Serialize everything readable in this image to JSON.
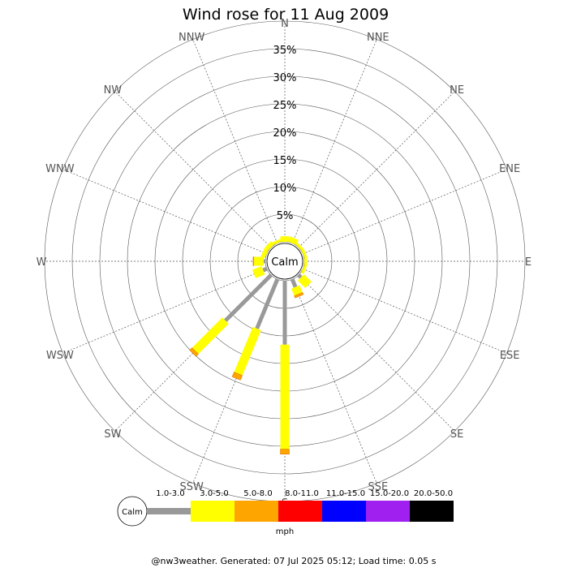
{
  "chart_data": {
    "type": "wind-rose",
    "title": "Wind rose for 11 Aug 2009",
    "directions": [
      "N",
      "NNE",
      "NE",
      "ENE",
      "E",
      "ESE",
      "SE",
      "SSE",
      "S",
      "SSW",
      "SW",
      "WSW",
      "W",
      "WNW",
      "NW",
      "NNW"
    ],
    "radial_ticks": [
      "5%",
      "10%",
      "15%",
      "20%",
      "25%",
      "30%",
      "35%"
    ],
    "radial_max": 35,
    "calm_label": "Calm",
    "speed_bins": [
      {
        "label": "1.0-3.0",
        "color": "#999999"
      },
      {
        "label": "3.0-5.0",
        "color": "#ffff00"
      },
      {
        "label": "5.0-8.0",
        "color": "#ffa500"
      },
      {
        "label": "8.0-11.0",
        "color": "#ff0000"
      },
      {
        "label": "11.0-15.0",
        "color": "#0000ff"
      },
      {
        "label": "15.0-20.0",
        "color": "#a020f0"
      },
      {
        "label": "20.0-50.0",
        "color": "#000000"
      }
    ],
    "unit": "mph",
    "series": [
      {
        "direction": "N",
        "values": [
          0,
          1.0,
          0
        ]
      },
      {
        "direction": "NNE",
        "values": [
          0,
          1.0,
          0
        ]
      },
      {
        "direction": "NE",
        "values": [
          0,
          0.5,
          0
        ]
      },
      {
        "direction": "ENE",
        "values": [
          0,
          0.5,
          0
        ]
      },
      {
        "direction": "E",
        "values": [
          0,
          0.5,
          0
        ]
      },
      {
        "direction": "ESE",
        "values": [
          0,
          0.5,
          0
        ]
      },
      {
        "direction": "SE",
        "values": [
          0.6,
          1.9,
          0
        ]
      },
      {
        "direction": "SSE",
        "values": [
          1.5,
          1.4,
          0.4
        ]
      },
      {
        "direction": "S",
        "values": [
          11.5,
          18.8,
          0.9
        ]
      },
      {
        "direction": "SSW",
        "values": [
          9.6,
          8.8,
          0.9
        ]
      },
      {
        "direction": "SW",
        "values": [
          11.6,
          7.7,
          0.6
        ]
      },
      {
        "direction": "WSW",
        "values": [
          0.7,
          1.8,
          0
        ]
      },
      {
        "direction": "W",
        "values": [
          0.3,
          1.8,
          0.1
        ]
      },
      {
        "direction": "WNW",
        "values": [
          0,
          0.8,
          0
        ]
      },
      {
        "direction": "NW",
        "values": [
          0,
          0.8,
          0
        ]
      },
      {
        "direction": "NNW",
        "values": [
          0,
          0.5,
          0
        ]
      }
    ],
    "footer": "@nw3weather. Generated: 07 Jul 2025 05:12; Load time: 0.05 s"
  }
}
